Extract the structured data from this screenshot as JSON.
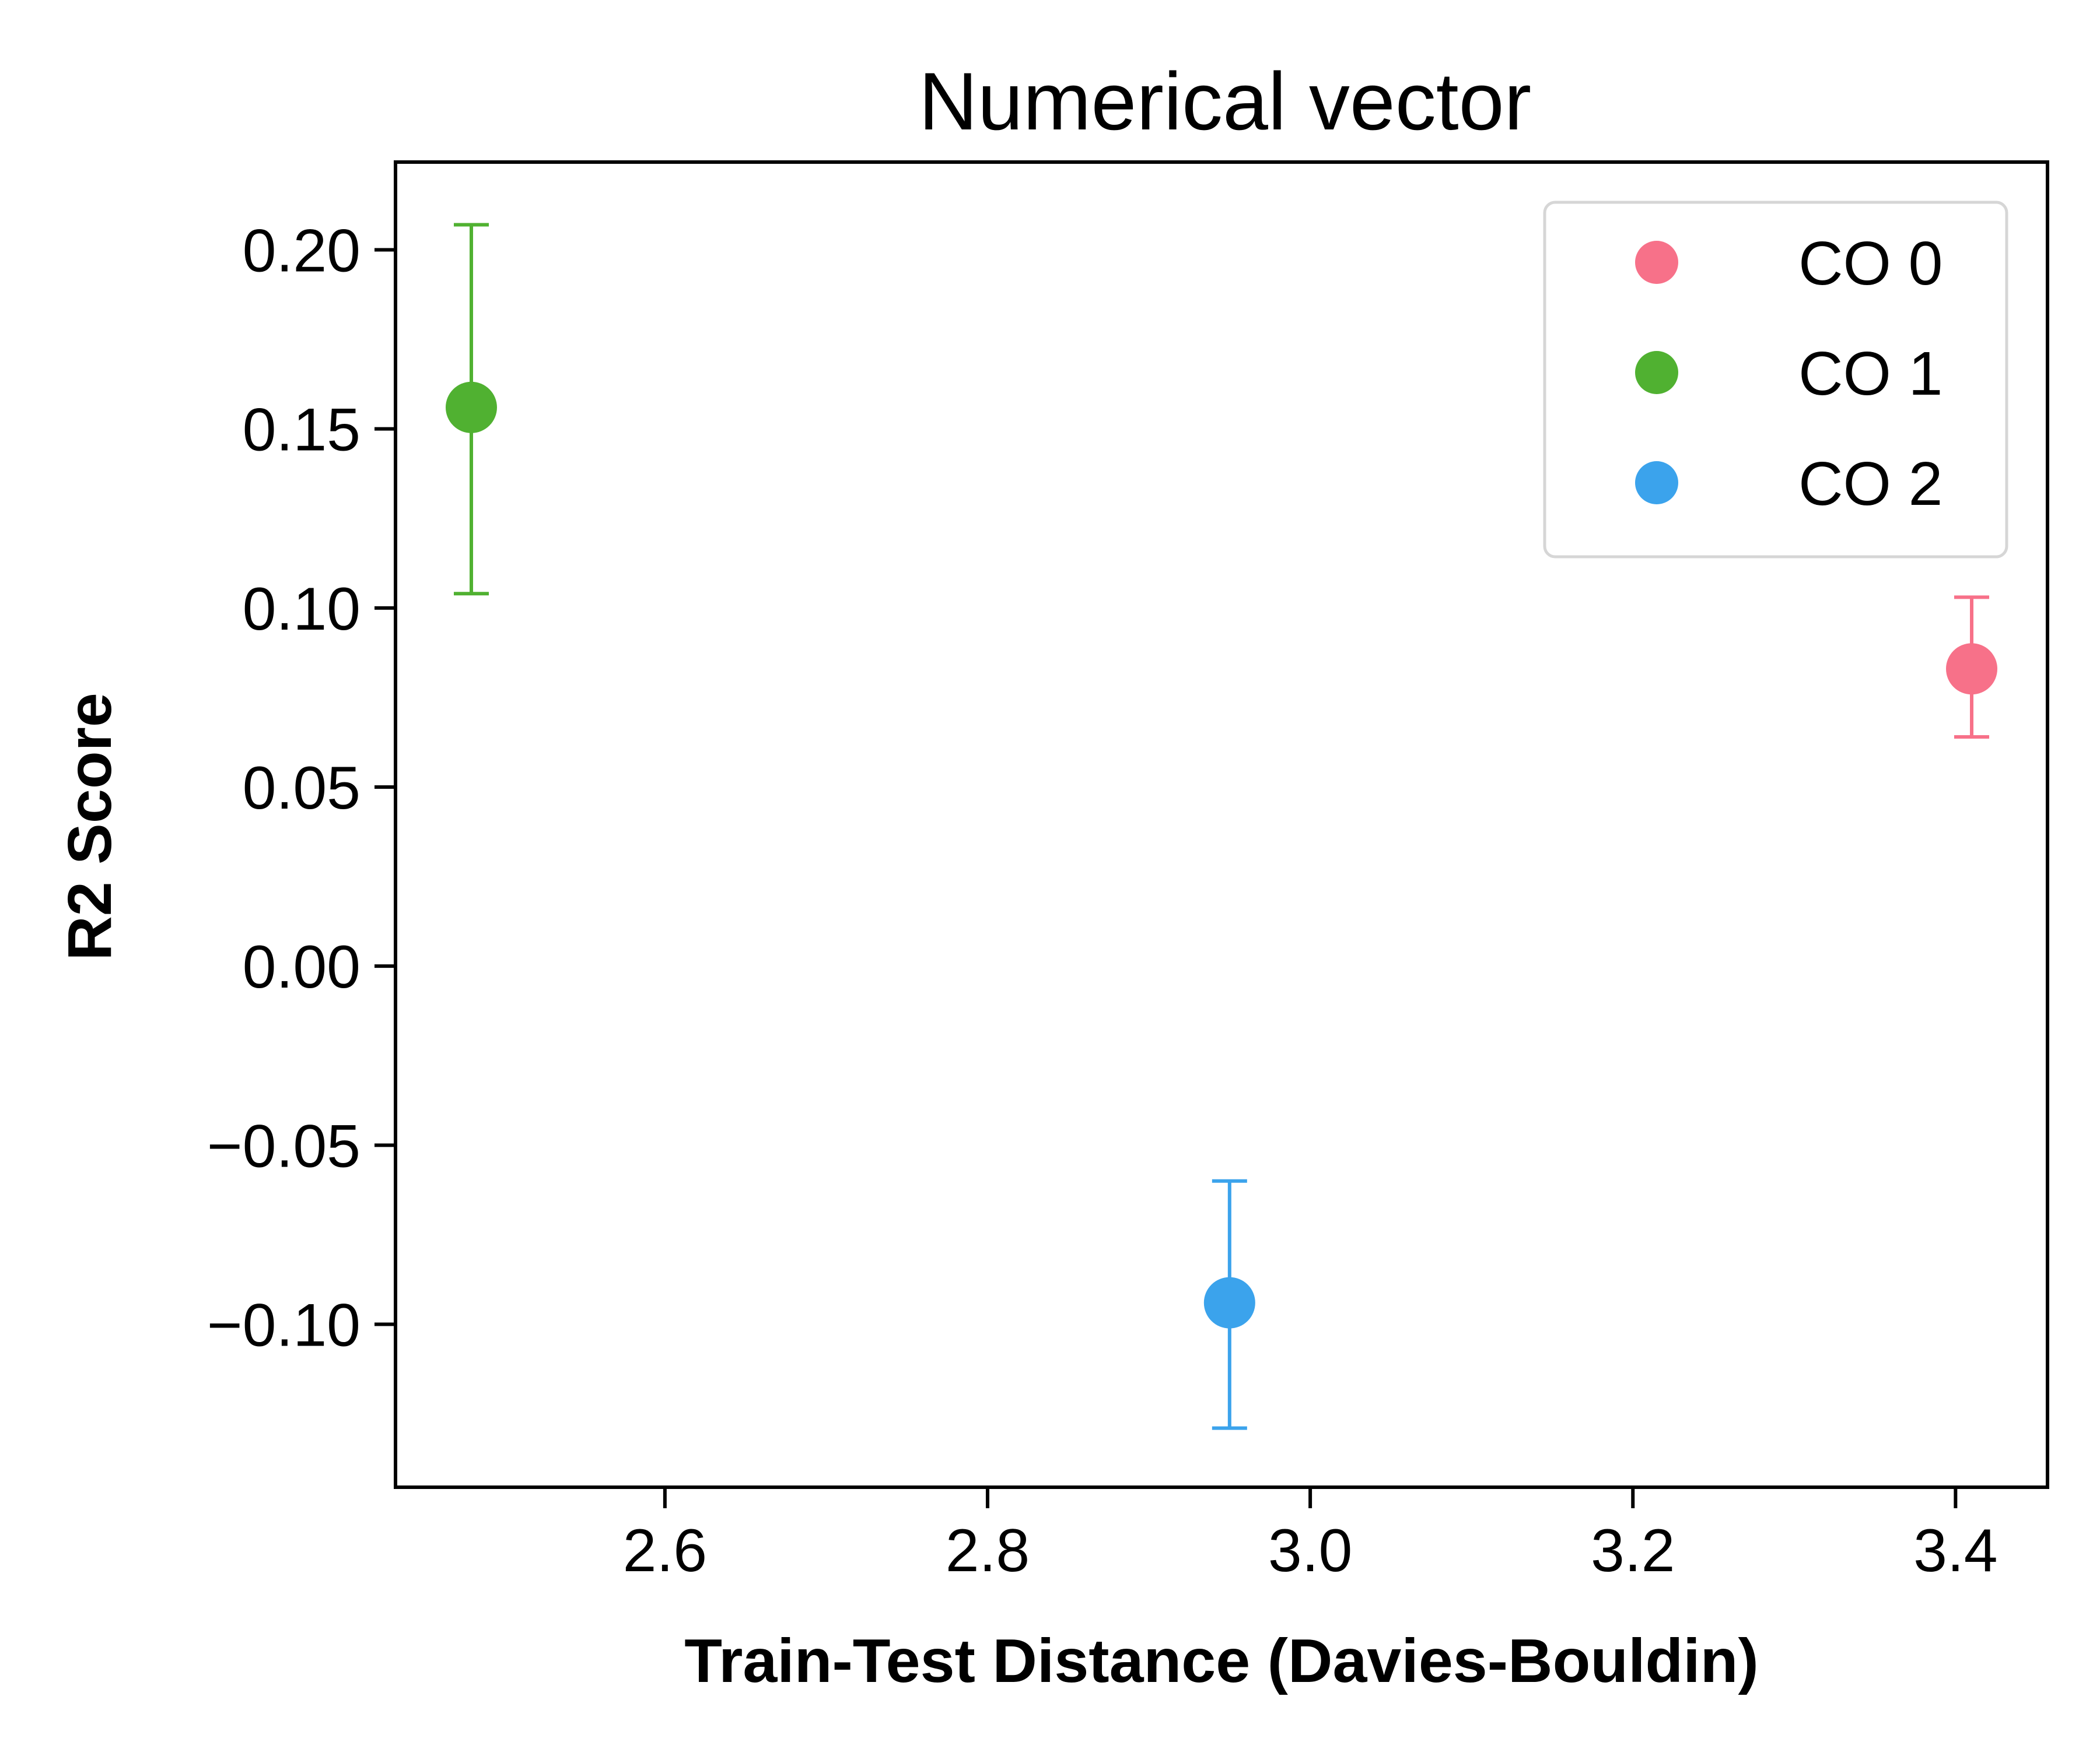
{
  "chart_data": {
    "type": "scatter",
    "title": "Numerical vector",
    "xlabel": "Train-Test Distance (Davies-Bouldin)",
    "ylabel": "R2 Score",
    "xlim": [
      2.433,
      3.457
    ],
    "ylim": [
      -0.1455,
      0.2245
    ],
    "xticks": [
      2.6,
      2.8,
      3.0,
      3.2,
      3.4
    ],
    "xtick_labels": [
      "2.6",
      "2.8",
      "3.0",
      "3.2",
      "3.4"
    ],
    "yticks": [
      0.2,
      0.15,
      0.1,
      0.05,
      0.0,
      -0.05,
      -0.1
    ],
    "ytick_labels": [
      "0.20",
      "0.15",
      "0.10",
      "0.05",
      "0.00",
      "−0.05",
      "−0.10"
    ],
    "grid": false,
    "legend_position": "top-right",
    "series": [
      {
        "name": "CO 0",
        "color": "#f77189",
        "x": 3.41,
        "y": 0.083,
        "yerr_low": 0.064,
        "yerr_high": 0.103
      },
      {
        "name": "CO 1",
        "color": "#50b131",
        "x": 2.48,
        "y": 0.156,
        "yerr_low": 0.104,
        "yerr_high": 0.207
      },
      {
        "name": "CO 2",
        "color": "#3ba3ec",
        "x": 2.95,
        "y": -0.094,
        "yerr_low": -0.129,
        "yerr_high": -0.06
      }
    ]
  }
}
